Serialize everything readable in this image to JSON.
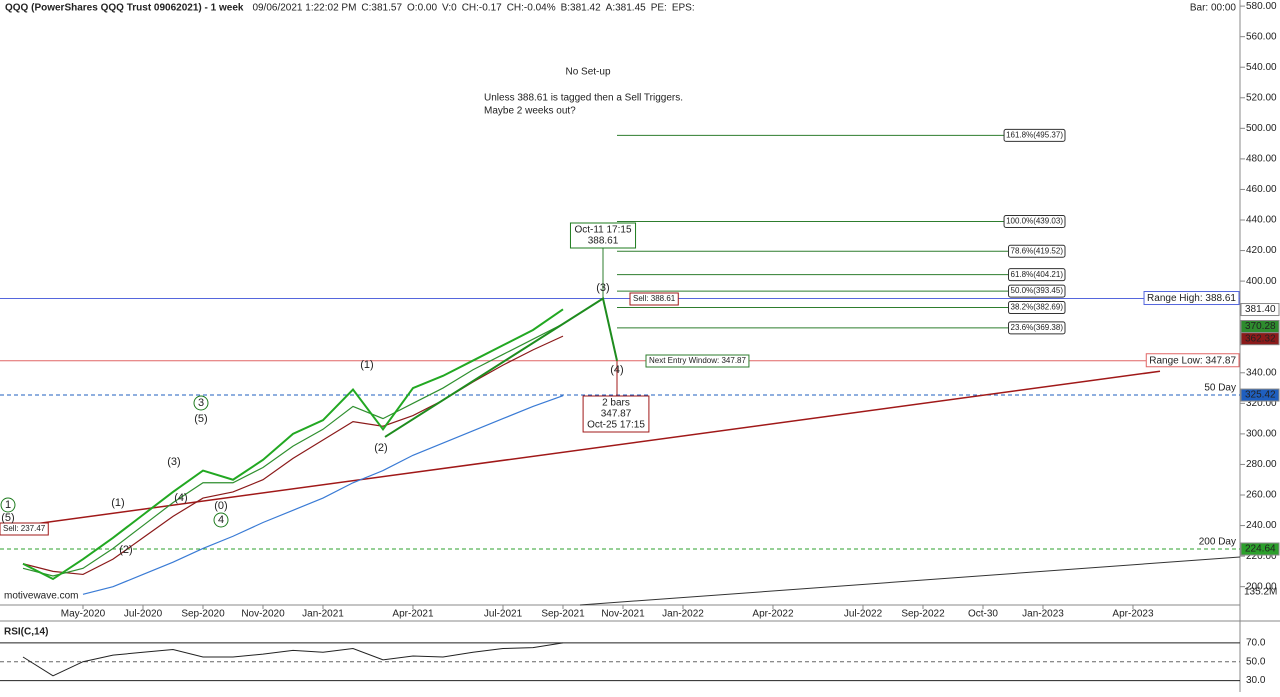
{
  "chart_data": {
    "type": "line",
    "title": "QQQ (PowerShares QQQ Trust 09062021) - 1 week",
    "header": [
      "09/06/2021 1:22:02 PM",
      "C:381.57",
      "O:0.00",
      "V:0",
      "CH:-0.17",
      "CH:-0.04%",
      "B:381.42",
      "A:381.45",
      "PE:",
      "EPS:"
    ],
    "bar_label": "Bar: 00:00",
    "watermark": "motivewave.com",
    "categories": [
      null,
      null,
      "May-2020",
      null,
      "Jul-2020",
      null,
      "Sep-2020",
      null,
      "Nov-2020",
      null,
      "Jan-2021",
      null,
      null,
      "Apr-2021",
      null,
      null,
      "Jul-2021",
      null,
      "Sep-2021",
      null,
      "Nov-2021",
      null,
      "Jan-2022",
      null,
      null,
      "Apr-2022",
      null,
      null,
      "Jul-2022",
      null,
      "Sep-2022",
      null,
      "Oct-30",
      null,
      "Jan-2023",
      null,
      null,
      "Apr-2023",
      null,
      null,
      null
    ],
    "series": [
      {
        "color": "#8b1a1a",
        "values": [
          215,
          210,
          208,
          218,
          232,
          246,
          258,
          262,
          270,
          284,
          296,
          308,
          305,
          312,
          322,
          334,
          345,
          355,
          364,
          null,
          null,
          null,
          null,
          null,
          null,
          null,
          null,
          null,
          null,
          null,
          null,
          null,
          null,
          null,
          null,
          null,
          null,
          null,
          null,
          null,
          null
        ]
      },
      {
        "color": "#2f8f2f",
        "values": [
          212,
          207,
          212,
          225,
          240,
          255,
          268,
          268,
          278,
          292,
          303,
          318,
          310,
          320,
          330,
          342,
          352,
          362,
          372,
          null,
          null,
          null,
          null,
          null,
          null,
          null,
          null,
          null,
          null,
          null,
          null,
          null,
          null,
          null,
          null,
          null,
          null,
          null,
          null,
          null,
          null
        ]
      },
      {
        "color": "#3a7bd5",
        "values": [
          null,
          null,
          195,
          200,
          208,
          216,
          225,
          233,
          242,
          250,
          258,
          268,
          276,
          286,
          294,
          302,
          310,
          318,
          325,
          null,
          null,
          null,
          null,
          null,
          null,
          null,
          null,
          null,
          null,
          null,
          null,
          null,
          null,
          null,
          null,
          null,
          null,
          null,
          null,
          null,
          null
        ]
      },
      {
        "color": "#22a822",
        "values": [
          215,
          205,
          218,
          232,
          247,
          262,
          276,
          270,
          283,
          300,
          309,
          329,
          303,
          330,
          338,
          348,
          358,
          368,
          381.57,
          null,
          null,
          null,
          null,
          null,
          null,
          null,
          null,
          null,
          null,
          null,
          null,
          null,
          null,
          null,
          null,
          null,
          null,
          null,
          null,
          null,
          null
        ]
      }
    ],
    "ylim": [
      188,
      584
    ],
    "yticks": [
      {
        "value": 200,
        "label": "200.00"
      },
      {
        "value": 220,
        "label": "220.00"
      },
      {
        "value": 240,
        "label": "240.00"
      },
      {
        "value": 260,
        "label": "260.00"
      },
      {
        "value": 280,
        "label": "280.00"
      },
      {
        "value": 300,
        "label": "300.00"
      },
      {
        "value": 320,
        "label": "320.00"
      },
      {
        "value": 340,
        "label": "340.00"
      },
      {
        "value": 360,
        "label": "360.00"
      },
      {
        "value": 380,
        "label": "380.00"
      },
      {
        "value": 400,
        "label": "400.00"
      },
      {
        "value": 420,
        "label": "420.00"
      },
      {
        "value": 440,
        "label": "440.00"
      },
      {
        "value": 460,
        "label": "460.00"
      },
      {
        "value": 480,
        "label": "480.00"
      },
      {
        "value": 500,
        "label": "500.00"
      },
      {
        "value": 520,
        "label": "520.00"
      },
      {
        "value": 540,
        "label": "540.00"
      },
      {
        "value": 560,
        "label": "560.00"
      },
      {
        "value": 580,
        "label": "580.00"
      }
    ],
    "badges": [
      {
        "value": 381.4,
        "label": "381.40",
        "color": "#ffffff"
      },
      {
        "value": 370.28,
        "label": "370.28",
        "color": "#2e8b2e"
      },
      {
        "value": 362.32,
        "label": "362.32",
        "color": "#8b1a1a"
      },
      {
        "value": 325.42,
        "label": "325.42",
        "color": "#1f5fbf"
      },
      {
        "value": 224.64,
        "label": "224.64",
        "color": "#2ca02c"
      }
    ],
    "levels": [
      {
        "label": "Range High: 388.61",
        "value": 388.61,
        "color": "#5566dd"
      },
      {
        "label": "Range Low: 347.87",
        "value": 347.87,
        "color": "#e06666"
      },
      {
        "label": "50 Day",
        "value": 325.42,
        "color": "#1f5fbf"
      },
      {
        "label": "200 Day",
        "value": 224.64,
        "color": "#2ca02c"
      }
    ],
    "fib_levels": [
      495.37,
      439.03,
      419.52,
      404.21,
      393.45,
      382.69,
      369.38
    ],
    "fib_labels": [
      "161.8%(495.37)",
      "100.0%(439.03)",
      "78.6%(419.52)",
      "61.8%(404.21)",
      "50.0%(393.45)",
      "38.2%(382.69)",
      "23.6%(369.38)"
    ],
    "projection": [
      298,
      388.61,
      347.87
    ],
    "trendline": [
      238,
      341
    ],
    "peak_box": [
      "Oct-11 17:15",
      "388.61"
    ],
    "trough_box": [
      "2 bars",
      "347.87",
      "Oct-25 17:15"
    ],
    "sell_label": "Sell: 388.61",
    "sell_left": "Sell: 237.47",
    "next_entry": "Next Entry Window: 347.87",
    "notes": [
      "No Set-up",
      "Unless 388.61 is tagged then a Sell Triggers.",
      "Maybe 2 weeks out?"
    ],
    "wave_labels": [
      "1",
      "(5)",
      "(1)",
      "(2)",
      "(3)",
      "(4)",
      "3",
      "(5)",
      "(0)",
      "4",
      "(1)",
      "(2)",
      "(3)",
      "(4)"
    ],
    "volume_label": "135.2M",
    "rsi": {
      "title": "RSI(C,14)",
      "ylim": [
        20,
        90
      ],
      "yticks": [
        {
          "value": 30,
          "label": "30.0"
        },
        {
          "value": 50,
          "label": "50.0"
        },
        {
          "value": 70,
          "label": "70.0"
        }
      ],
      "values": [
        55,
        35,
        50,
        57,
        60,
        63,
        55,
        55,
        58,
        62,
        60,
        64,
        52,
        56,
        55,
        60,
        64,
        65,
        70,
        null,
        null,
        null,
        null,
        null,
        null,
        null,
        null,
        null,
        null,
        null,
        null,
        null,
        null,
        null,
        null,
        null,
        null,
        null,
        null,
        null,
        null
      ]
    }
  }
}
